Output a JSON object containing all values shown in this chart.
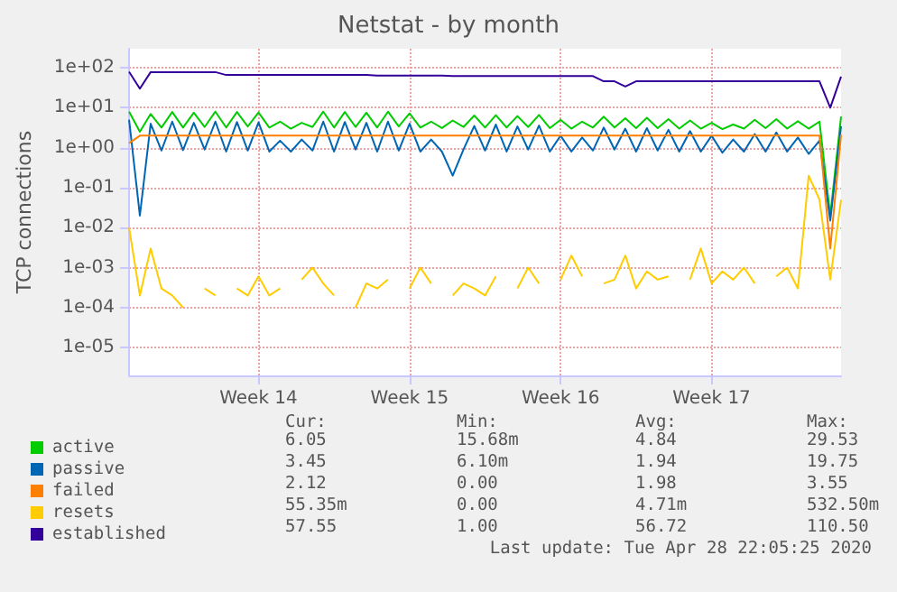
{
  "chart_data": {
    "type": "line",
    "title": "Netstat - by month",
    "ylabel": "TCP connections",
    "log": "y",
    "grid": true,
    "legend": "bottom",
    "marker": "none",
    "line_style": "solid",
    "ylim": [
      2e-06,
      300
    ],
    "yticks": [
      {
        "value": 1e-05,
        "label": "1e-05"
      },
      {
        "value": 0.0001,
        "label": "1e-04"
      },
      {
        "value": 0.001,
        "label": "1e-03"
      },
      {
        "value": 0.01,
        "label": "1e-02"
      },
      {
        "value": 0.1,
        "label": "1e-01"
      },
      {
        "value": 1,
        "label": "1e+00"
      },
      {
        "value": 10,
        "label": "1e+01"
      },
      {
        "value": 100,
        "label": "1e+02"
      }
    ],
    "categories": [
      null,
      null,
      null,
      null,
      null,
      null,
      null,
      null,
      null,
      null,
      null,
      null,
      "Week 14",
      null,
      null,
      null,
      null,
      null,
      null,
      null,
      null,
      null,
      null,
      null,
      null,
      null,
      "Week 15",
      null,
      null,
      null,
      null,
      null,
      null,
      null,
      null,
      null,
      null,
      null,
      null,
      null,
      "Week 16",
      null,
      null,
      null,
      null,
      null,
      null,
      null,
      null,
      null,
      null,
      null,
      null,
      null,
      "Week 17",
      null,
      null,
      null,
      null,
      null,
      null,
      null,
      null,
      null,
      null,
      null,
      null
    ],
    "series": [
      {
        "name": "active",
        "color": "#00cc00",
        "values": [
          8,
          2.5,
          7,
          3.2,
          7.8,
          3.2,
          7.5,
          3.3,
          8,
          3.2,
          7.8,
          3.4,
          7.6,
          3.2,
          4.5,
          3,
          4.2,
          3.3,
          8,
          3.2,
          7.8,
          3.3,
          7.5,
          3.2,
          8,
          3.4,
          7.2,
          3.2,
          4.5,
          3.1,
          4.8,
          3.3,
          6.4,
          3.2,
          6.5,
          3.2,
          6.2,
          3.3,
          6.6,
          3.1,
          5,
          3,
          4.5,
          3.2,
          6,
          3.2,
          5.5,
          3.1,
          5.6,
          3.1,
          5.2,
          3,
          4.8,
          3,
          4.2,
          2.9,
          3.8,
          3,
          5,
          3.1,
          5.2,
          3,
          4.6,
          3,
          4.5,
          0.02,
          6.05
        ]
      },
      {
        "name": "passive",
        "color": "#0066b3",
        "values": [
          5,
          0.02,
          4,
          0.85,
          4.5,
          0.87,
          4.2,
          0.9,
          4.5,
          0.8,
          4.4,
          0.85,
          4.3,
          0.8,
          1.5,
          0.8,
          1.6,
          0.85,
          4.5,
          0.8,
          4.4,
          0.9,
          4.2,
          0.8,
          4.5,
          0.85,
          4,
          0.8,
          1.6,
          0.8,
          0.2,
          0.9,
          3.5,
          0.85,
          3.8,
          0.8,
          3.4,
          0.9,
          3.6,
          0.8,
          2,
          0.8,
          1.8,
          0.85,
          3.2,
          0.9,
          3,
          0.8,
          3.1,
          0.85,
          2.8,
          0.8,
          2.6,
          0.8,
          2,
          0.75,
          1.6,
          0.8,
          2.2,
          0.8,
          2.4,
          0.8,
          1.8,
          0.7,
          1.5,
          0.015,
          3.45
        ]
      },
      {
        "name": "failed",
        "color": "#ff8000",
        "values": [
          1.3,
          2,
          2,
          2,
          2,
          2,
          2,
          2,
          2,
          2,
          2,
          2,
          2,
          2,
          2,
          2,
          2,
          2,
          2,
          2,
          2,
          2,
          2,
          2,
          2,
          2,
          2,
          2,
          2,
          2,
          2,
          2,
          2,
          2,
          2,
          2,
          2,
          2,
          2,
          2,
          2,
          2,
          2,
          2,
          2,
          2,
          2,
          2,
          2,
          2,
          2,
          2,
          2,
          2,
          2,
          2,
          2,
          2,
          2,
          2,
          2,
          2,
          2,
          2,
          2,
          0.003,
          2.12
        ]
      },
      {
        "name": "resets",
        "color": "#ffcc00",
        "values": [
          0.01,
          0.0002,
          0.003,
          0.0003,
          0.0002,
          0.0001,
          null,
          0.0003,
          0.0002,
          null,
          0.0003,
          0.0002,
          0.0006,
          0.0002,
          0.0003,
          null,
          0.0005,
          0.001,
          0.0004,
          0.0002,
          null,
          0.0001,
          0.0004,
          0.0003,
          0.0005,
          null,
          0.0003,
          0.001,
          0.0004,
          null,
          0.0002,
          0.0004,
          0.0003,
          0.0002,
          0.0006,
          null,
          0.0003,
          0.001,
          0.0004,
          null,
          0.0005,
          0.002,
          0.0006,
          null,
          0.0004,
          0.0005,
          0.002,
          0.0003,
          0.0008,
          0.0005,
          0.0006,
          null,
          0.0005,
          0.003,
          0.0004,
          0.0008,
          0.0005,
          0.001,
          0.0004,
          null,
          0.0006,
          0.001,
          0.0003,
          0.2,
          0.05,
          0.0005,
          0.05
        ]
      },
      {
        "name": "established",
        "color": "#330099",
        "values": [
          80,
          30,
          78,
          78,
          78,
          78,
          78,
          78,
          78,
          66,
          66,
          66,
          66,
          66,
          66,
          66,
          66,
          66,
          66,
          66,
          66,
          66,
          66,
          64,
          64,
          64,
          64,
          64,
          64,
          64,
          62,
          62,
          62,
          62,
          62,
          62,
          62,
          62,
          62,
          62,
          62,
          62,
          62,
          62,
          46,
          46,
          34,
          46,
          46,
          46,
          46,
          46,
          46,
          46,
          46,
          46,
          46,
          46,
          46,
          46,
          46,
          46,
          46,
          46,
          46,
          10,
          60
        ]
      }
    ],
    "annotations": [
      "Cur:",
      "Min:",
      "Avg:",
      "Max:",
      "6.05",
      "15.68m",
      "4.84",
      "29.53",
      "3.45",
      "6.10m",
      "1.94",
      "19.75",
      "2.12",
      "0.00",
      "1.98",
      "3.55",
      "55.35m",
      "0.00",
      "4.71m",
      "532.50m",
      "57.55",
      "1.00",
      "56.72",
      "110.50",
      "Last update: Tue Apr 28 22:05:25 2020"
    ]
  }
}
